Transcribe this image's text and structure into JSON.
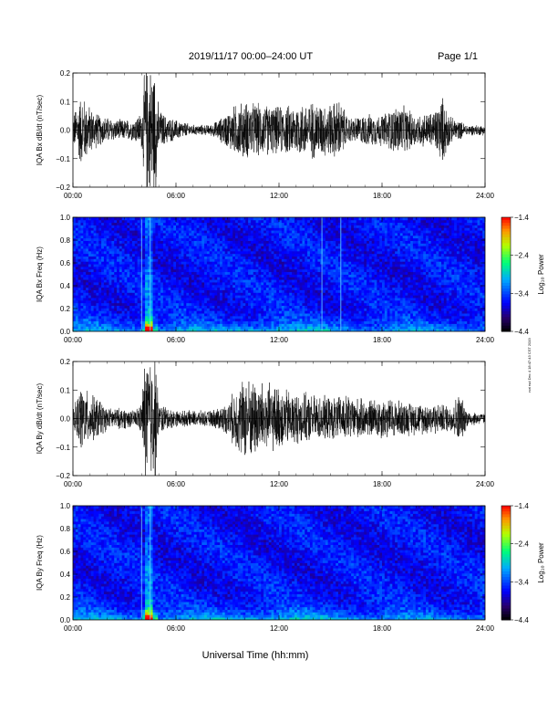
{
  "header": {
    "title": "2019/11/17  00:00–24:00 UT",
    "page": "Page 1/1"
  },
  "xlabel": "Universal Time (hh:mm)",
  "side_note": "not rsd Dec 4 18:47:43 CST 2019",
  "chart_data": [
    {
      "type": "line",
      "panel": 1,
      "ylabel": "IQA Bx dB/dt (nT/sec)",
      "xlim": [
        0,
        24
      ],
      "ylim": [
        -0.2,
        0.2
      ],
      "xticks": [
        "00:00",
        "06:00",
        "12:00",
        "18:00",
        "24:00"
      ],
      "yticks": [
        "0.2",
        "0.1",
        "0.0",
        "−0.1",
        "−0.2"
      ],
      "amplitude_envelope": {
        "hours": [
          0,
          0.5,
          1,
          1.5,
          2,
          2.5,
          3,
          3.5,
          4,
          4.2,
          4.8,
          5,
          5.5,
          6,
          7,
          8,
          8.5,
          9,
          9.5,
          10,
          11,
          12,
          13,
          14,
          15,
          15.5,
          16,
          16.5,
          17,
          18,
          19,
          20,
          21,
          21.5,
          22,
          23,
          24
        ],
        "amplitude": [
          0.06,
          0.14,
          0.09,
          0.06,
          0.05,
          0.04,
          0.04,
          0.04,
          0.07,
          0.25,
          0.25,
          0.08,
          0.05,
          0.04,
          0.02,
          0.02,
          0.04,
          0.07,
          0.1,
          0.11,
          0.1,
          0.09,
          0.1,
          0.11,
          0.1,
          0.12,
          0.05,
          0.05,
          0.06,
          0.06,
          0.1,
          0.06,
          0.07,
          0.13,
          0.05,
          0.02,
          0.02
        ]
      }
    },
    {
      "type": "heatmap",
      "panel": 2,
      "ylabel": "IQA Bx Freq (Hz)",
      "colorbar_label": "Log₁₀ Power",
      "colorbar_ticks": [
        "−1.4",
        "−2.4",
        "−3.4",
        "−4.4"
      ],
      "zlim": [
        -4.4,
        -1.4
      ],
      "xlim": [
        0,
        24
      ],
      "ylim": [
        0.0,
        1.0
      ],
      "xticks": [
        "00:00",
        "06:00",
        "12:00",
        "18:00",
        "24:00"
      ],
      "yticks": [
        "1.0",
        "0.8",
        "0.6",
        "0.4",
        "0.2",
        "0.0"
      ],
      "vertical_lines_hours": [
        4.0,
        4.5,
        14.5,
        15.6
      ]
    },
    {
      "type": "line",
      "panel": 3,
      "ylabel": "IQA By dB/dt (nT/sec)",
      "xlim": [
        0,
        24
      ],
      "ylim": [
        -0.2,
        0.2
      ],
      "xticks": [
        "00:00",
        "06:00",
        "12:00",
        "18:00",
        "24:00"
      ],
      "yticks": [
        "0.2",
        "0.1",
        "0.0",
        "−0.1",
        "−0.2"
      ],
      "amplitude_envelope": {
        "hours": [
          0,
          0.5,
          1,
          1.5,
          2,
          3,
          3.5,
          4,
          4.2,
          4.8,
          5,
          6,
          7,
          8,
          9,
          9.5,
          10,
          10.5,
          11,
          12,
          13,
          14,
          15,
          16,
          17,
          18,
          19,
          20,
          21,
          22,
          22.5,
          23,
          24
        ],
        "amplitude": [
          0.03,
          0.13,
          0.09,
          0.08,
          0.04,
          0.04,
          0.03,
          0.06,
          0.25,
          0.25,
          0.06,
          0.03,
          0.03,
          0.03,
          0.06,
          0.12,
          0.16,
          0.15,
          0.14,
          0.12,
          0.1,
          0.09,
          0.08,
          0.09,
          0.07,
          0.08,
          0.07,
          0.06,
          0.06,
          0.05,
          0.1,
          0.03,
          0.02
        ]
      }
    },
    {
      "type": "heatmap",
      "panel": 4,
      "ylabel": "IQA By Freq (Hz)",
      "colorbar_label": "Log₁₀ Power",
      "colorbar_ticks": [
        "−1.4",
        "−2.4",
        "−3.4",
        "−4.4"
      ],
      "zlim": [
        -4.4,
        -1.4
      ],
      "xlim": [
        0,
        24
      ],
      "ylim": [
        0.0,
        1.0
      ],
      "xticks": [
        "00:00",
        "06:00",
        "12:00",
        "18:00",
        "24:00"
      ],
      "yticks": [
        "1.0",
        "0.8",
        "0.6",
        "0.4",
        "0.2",
        "0.0"
      ],
      "vertical_lines_hours": [
        4.0,
        4.5
      ]
    }
  ]
}
